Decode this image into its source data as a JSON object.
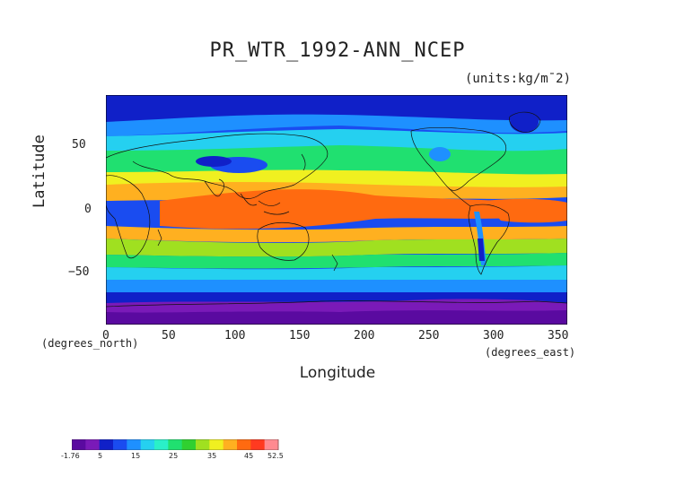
{
  "title": "PR_WTR_1992-ANN_NCEP",
  "units": "(units:kg/m¯2)",
  "axes": {
    "x_label": "Longitude",
    "y_label": "Latitude",
    "x_units": "(degrees_east)",
    "y_units": "(degrees_north)",
    "x_ticks": [
      "0",
      "50",
      "100",
      "150",
      "200",
      "250",
      "300",
      "350"
    ],
    "y_ticks": [
      "50",
      "0",
      "−50"
    ]
  },
  "legend": {
    "labels": [
      "-1.76",
      "5",
      "15",
      "25",
      "35",
      "45",
      "52.5"
    ]
  },
  "colors": {
    "palette": [
      "#5a0aa0",
      "#7a1ab8",
      "#1020c8",
      "#1a4cf0",
      "#1e90ff",
      "#25d0f0",
      "#2af0c8",
      "#20e070",
      "#30d030",
      "#a0e020",
      "#f0f020",
      "#ffb020",
      "#ff6a10",
      "#ff3a20",
      "#ff8a90"
    ]
  }
}
